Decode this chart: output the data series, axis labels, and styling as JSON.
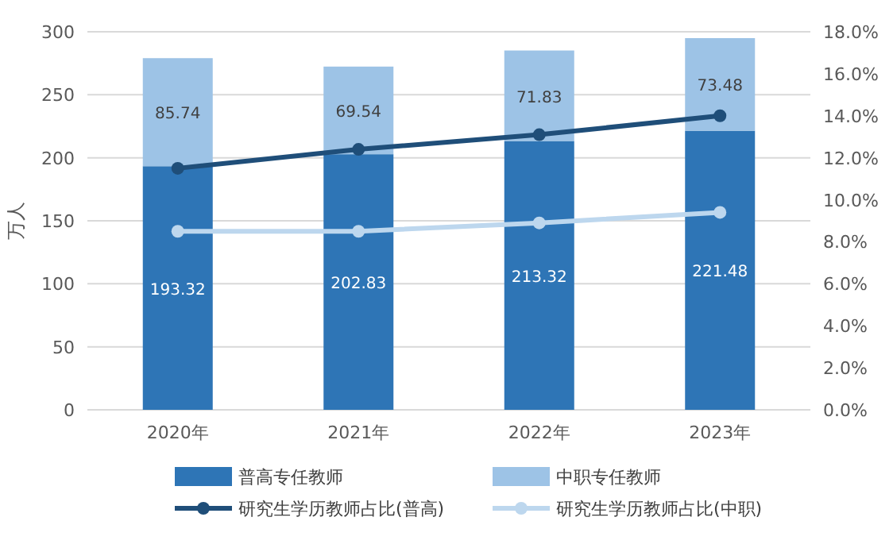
{
  "chart_data": {
    "type": "bar",
    "stacked": true,
    "ylabel": "万人",
    "categories": [
      "2020年",
      "2021年",
      "2022年",
      "2023年"
    ],
    "ylim": [
      0,
      300
    ],
    "yticks": [
      0,
      50,
      100,
      150,
      200,
      250,
      300
    ],
    "y2lim": [
      0,
      18
    ],
    "y2ticks": [
      {
        "value": 0,
        "label": "0.0%"
      },
      {
        "value": 2,
        "label": "2.0%"
      },
      {
        "value": 4,
        "label": "4.0%"
      },
      {
        "value": 6,
        "label": "6.0%"
      },
      {
        "value": 8,
        "label": "8.0%"
      },
      {
        "value": 10,
        "label": "10.0%"
      },
      {
        "value": 12,
        "label": "12.0%"
      },
      {
        "value": 14,
        "label": "14.0%"
      },
      {
        "value": 16,
        "label": "16.0%"
      },
      {
        "value": 18,
        "label": "18.0%"
      }
    ],
    "grid": "y",
    "legend": "bottom",
    "series": [
      {
        "name": "普高专任教师",
        "color": "#2e75b6",
        "values": [
          193.32,
          202.83,
          213.32,
          221.48
        ],
        "value_labels": [
          "193.32",
          "202.83",
          "213.32",
          "221.48"
        ]
      },
      {
        "name": "中职专任教师",
        "color": "#9dc3e6",
        "values": [
          85.74,
          69.54,
          71.83,
          73.48
        ],
        "value_labels": [
          "85.74",
          "69.54",
          "71.83",
          "73.48"
        ]
      },
      {
        "name": "研究生学历教师占比(普高)",
        "type": "line",
        "axis": "y2",
        "color": "#1f4e79",
        "marker": "circle",
        "values": [
          11.5,
          12.4,
          13.1,
          14.0
        ]
      },
      {
        "name": "研究生学历教师占比(中职)",
        "type": "line",
        "axis": "y2",
        "color": "#bdd7ee",
        "marker": "circle",
        "values": [
          8.5,
          8.5,
          8.9,
          9.4
        ]
      }
    ]
  }
}
